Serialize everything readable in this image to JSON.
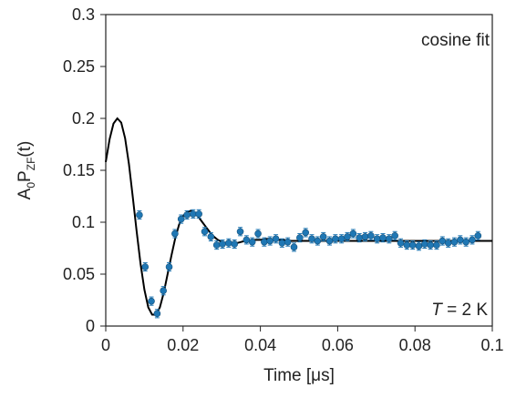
{
  "chart_data": {
    "type": "scatter",
    "title": "",
    "xlabel": "Time [μs]",
    "ylabel": "A",
    "ylabel_sub1": "0",
    "ylabel_mid": "P",
    "ylabel_sub2": "ZF",
    "ylabel_tail": "(t)",
    "xlim": [
      0,
      0.1
    ],
    "ylim": [
      0,
      0.3
    ],
    "xticks": [
      0,
      0.02,
      0.04,
      0.06,
      0.08,
      0.1
    ],
    "xtick_labels": [
      "0",
      "0.02",
      "0.04",
      "0.06",
      "0.08",
      "0.1"
    ],
    "yticks": [
      0,
      0.05,
      0.1,
      0.15,
      0.2,
      0.25,
      0.3
    ],
    "ytick_labels": [
      "0",
      "0.05",
      "0.1",
      "0.15",
      "0.2",
      "0.25",
      "0.3"
    ],
    "grid": false,
    "annotations": {
      "fit_label": "cosine fit",
      "temp_var": "T",
      "temp_rest": " = 2 K"
    },
    "series": [
      {
        "kind": "points-with-errorbars",
        "color": "#1f77b4",
        "x": [
          0.0087,
          0.0102,
          0.0118,
          0.0133,
          0.0149,
          0.0164,
          0.0179,
          0.0195,
          0.021,
          0.0226,
          0.0241,
          0.0256,
          0.0272,
          0.0287,
          0.0302,
          0.0318,
          0.0333,
          0.0348,
          0.0364,
          0.0379,
          0.0394,
          0.041,
          0.0425,
          0.044,
          0.0456,
          0.0471,
          0.0487,
          0.0502,
          0.0517,
          0.0533,
          0.0548,
          0.0563,
          0.0579,
          0.0594,
          0.061,
          0.0625,
          0.064,
          0.0656,
          0.0671,
          0.0686,
          0.0702,
          0.0717,
          0.0733,
          0.0748,
          0.0763,
          0.0779,
          0.0794,
          0.081,
          0.0825,
          0.084,
          0.0856,
          0.0871,
          0.0886,
          0.0902,
          0.0917,
          0.0932,
          0.0948,
          0.0963
        ],
        "y": [
          0.107,
          0.057,
          0.024,
          0.012,
          0.034,
          0.057,
          0.089,
          0.103,
          0.107,
          0.108,
          0.108,
          0.091,
          0.086,
          0.078,
          0.079,
          0.08,
          0.079,
          0.091,
          0.083,
          0.081,
          0.089,
          0.081,
          0.082,
          0.084,
          0.08,
          0.081,
          0.076,
          0.085,
          0.09,
          0.084,
          0.082,
          0.086,
          0.082,
          0.084,
          0.084,
          0.086,
          0.089,
          0.085,
          0.086,
          0.087,
          0.084,
          0.085,
          0.084,
          0.087,
          0.08,
          0.078,
          0.078,
          0.077,
          0.079,
          0.078,
          0.078,
          0.082,
          0.08,
          0.081,
          0.083,
          0.081,
          0.083,
          0.087
        ],
        "err": 0.004
      },
      {
        "kind": "fit-line",
        "color": "#000000",
        "x": [
          0,
          0.001,
          0.002,
          0.003,
          0.004,
          0.005,
          0.006,
          0.007,
          0.008,
          0.009,
          0.01,
          0.011,
          0.012,
          0.013,
          0.014,
          0.015,
          0.016,
          0.017,
          0.018,
          0.019,
          0.02,
          0.021,
          0.022,
          0.023,
          0.024,
          0.025,
          0.026,
          0.027,
          0.028,
          0.029,
          0.03,
          0.031,
          0.032,
          0.033,
          0.034,
          0.035,
          0.036,
          0.037,
          0.038,
          0.039,
          0.04,
          0.042,
          0.044,
          0.046,
          0.048,
          0.05,
          0.055,
          0.06,
          0.07,
          0.08,
          0.09,
          0.1
        ],
        "y": [
          0.158,
          0.18,
          0.195,
          0.2,
          0.196,
          0.181,
          0.156,
          0.124,
          0.091,
          0.06,
          0.035,
          0.018,
          0.011,
          0.011,
          0.018,
          0.032,
          0.05,
          0.068,
          0.085,
          0.098,
          0.106,
          0.11,
          0.111,
          0.109,
          0.105,
          0.1,
          0.095,
          0.09,
          0.086,
          0.083,
          0.081,
          0.08,
          0.079,
          0.079,
          0.08,
          0.081,
          0.082,
          0.082,
          0.083,
          0.083,
          0.083,
          0.084,
          0.083,
          0.083,
          0.082,
          0.082,
          0.082,
          0.082,
          0.082,
          0.082,
          0.082,
          0.082
        ]
      }
    ]
  }
}
